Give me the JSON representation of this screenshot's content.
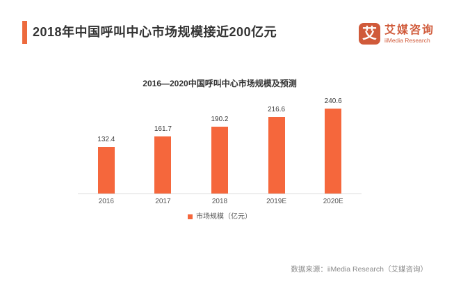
{
  "header": {
    "title": "2018年中国呼叫中心市场规模接近200亿元"
  },
  "logo": {
    "icon_glyph": "艾",
    "name_cn": "艾媒咨询",
    "name_en": "iiMedia Research"
  },
  "chart_data": {
    "type": "bar",
    "title": "2016—2020中国呼叫中心市场规模及预测",
    "categories": [
      "2016",
      "2017",
      "2018",
      "2019E",
      "2020E"
    ],
    "values": [
      132.4,
      161.7,
      190.2,
      216.6,
      240.6
    ],
    "legend": [
      "市场规模（亿元）"
    ],
    "legend_position": "bottom",
    "xlabel": "",
    "ylabel": "",
    "ylim": [
      0,
      250
    ],
    "grid": false,
    "bar_color": "#F5673C",
    "value_labels_shown": true
  },
  "footer": {
    "source": "数据来源：iiMedia Research（艾媒咨询）"
  },
  "colors": {
    "accent": "#ED6A3D",
    "bar": "#F5673C",
    "logo": "#D05A3A",
    "axis_line": "#DDDDDD",
    "title_text": "#333333",
    "source_text": "#8A8A8A"
  }
}
